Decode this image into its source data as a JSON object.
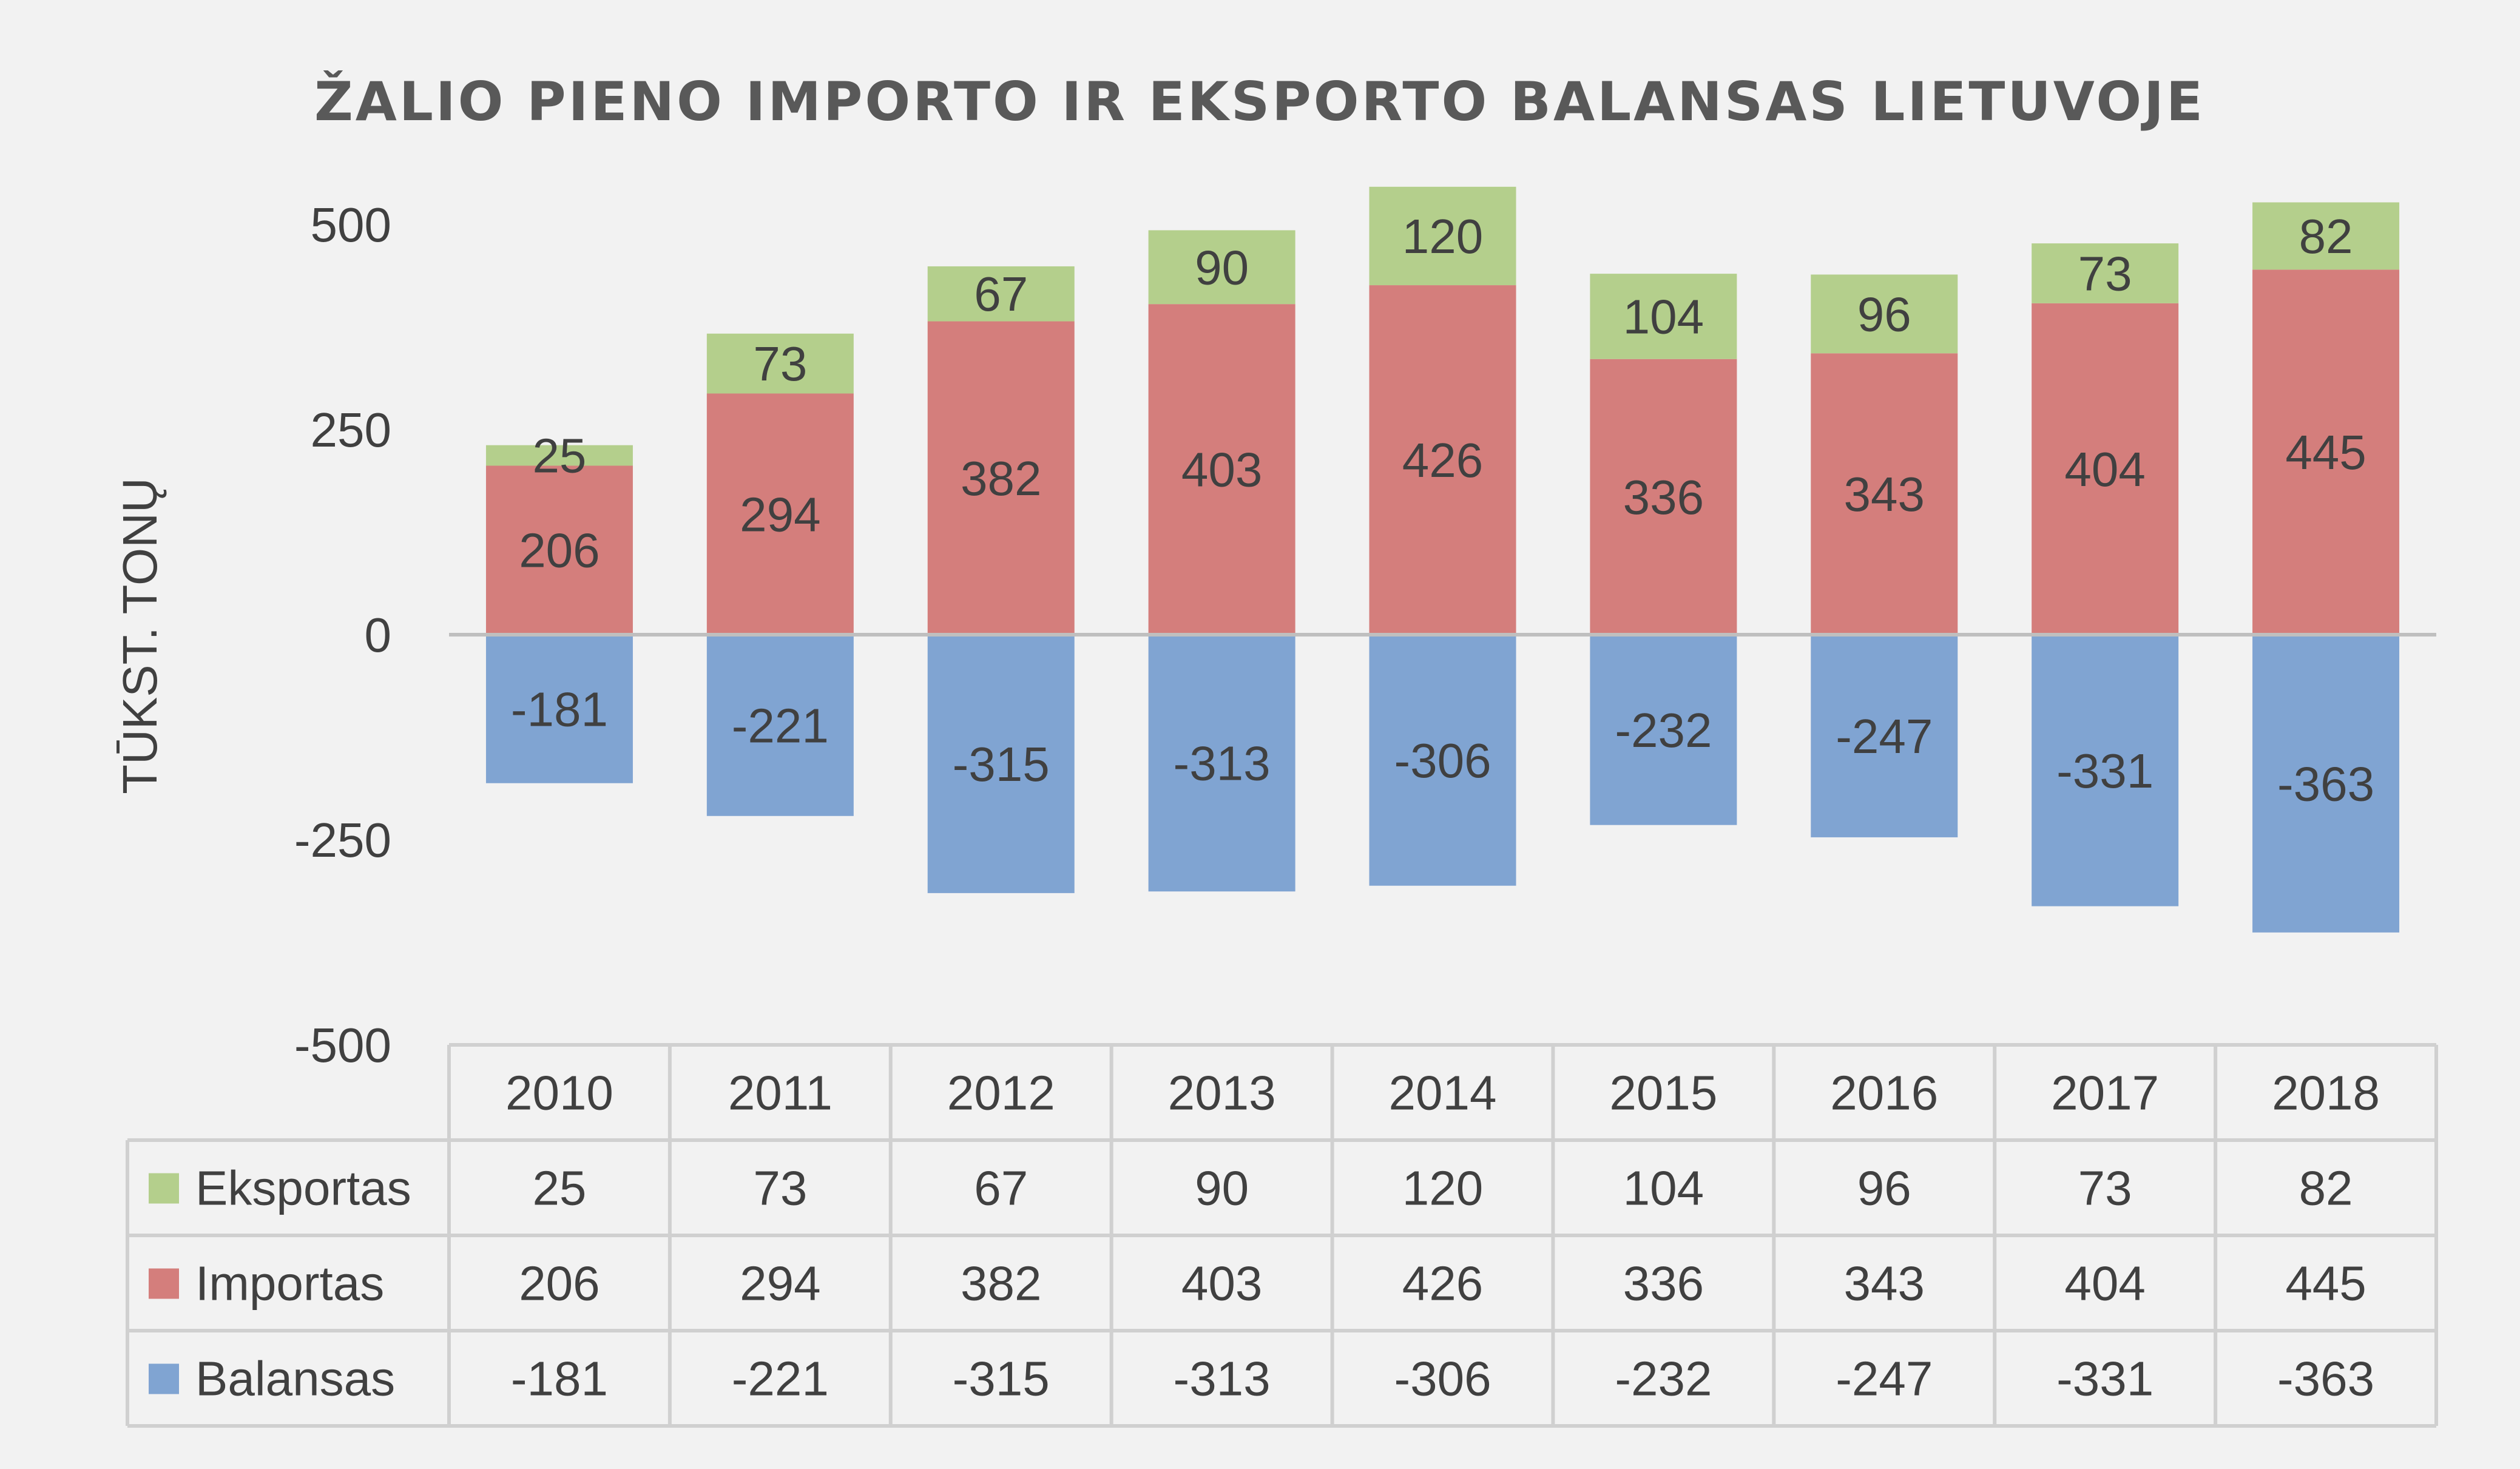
{
  "chart_data": {
    "type": "bar",
    "stacked": true,
    "title": "ŽALIO PIENO IMPORTO IR EKSPORTO BALANSAS LIETUVOJE",
    "ylabel": "TŪKST. TONŲ",
    "xlabel": "",
    "ylim": [
      -500,
      500
    ],
    "yticks": [
      500,
      250,
      0,
      -250,
      -500
    ],
    "categories": [
      "2010",
      "2011",
      "2012",
      "2013",
      "2014",
      "2015",
      "2016",
      "2017",
      "2018"
    ],
    "series": [
      {
        "name": "Eksportas",
        "color": "#b4cf8c",
        "values": [
          25,
          73,
          67,
          90,
          120,
          104,
          96,
          73,
          82
        ]
      },
      {
        "name": "Importas",
        "color": "#d47e7c",
        "values": [
          206,
          294,
          382,
          403,
          426,
          336,
          343,
          404,
          445
        ]
      },
      {
        "name": "Balansas",
        "color": "#80a4d2",
        "values": [
          -181,
          -221,
          -315,
          -313,
          -306,
          -232,
          -247,
          -331,
          -363
        ]
      }
    ],
    "legend": "data-table",
    "grid": false
  }
}
